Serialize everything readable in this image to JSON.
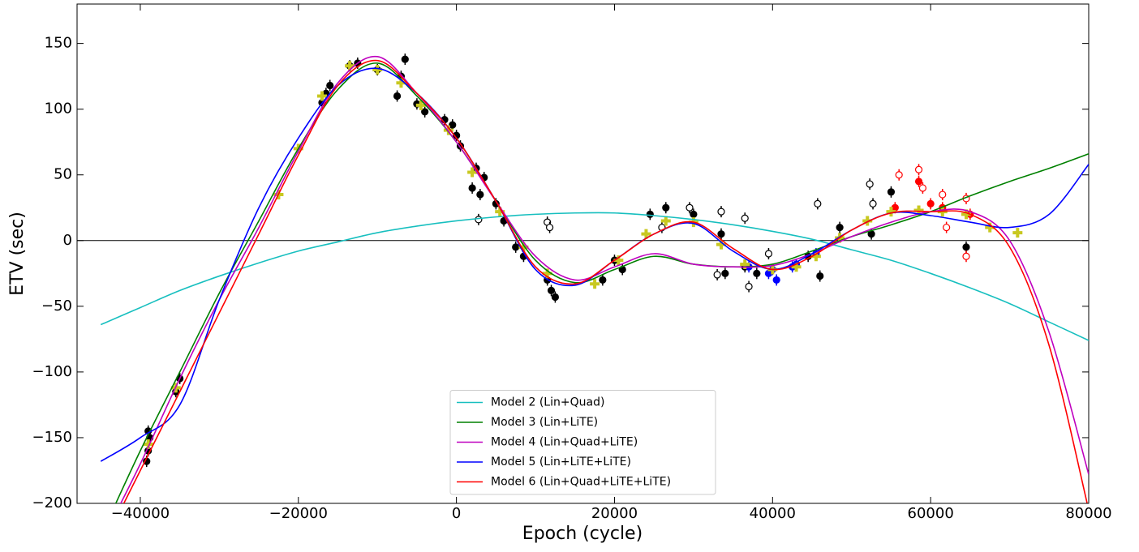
{
  "chart_data": {
    "type": "line",
    "x_label": "Epoch (cycle)",
    "y_label": "ETV (sec)",
    "xlim": [
      -48000,
      80000
    ],
    "ylim": [
      -200,
      180
    ],
    "xticks": [
      {
        "value": -40000,
        "label": "−40000"
      },
      {
        "value": -20000,
        "label": "−20000"
      },
      0,
      20000,
      40000,
      60000,
      80000
    ],
    "yticks": [
      {
        "value": -200,
        "label": "−200"
      },
      {
        "value": -150,
        "label": "−150"
      },
      {
        "value": -100,
        "label": "−100"
      },
      {
        "value": -50,
        "label": "−50"
      },
      0,
      50,
      100,
      150
    ],
    "hline": 0,
    "legend": "lower center",
    "x": [
      -45000,
      -40000,
      -35000,
      -30000,
      -25000,
      -20000,
      -15000,
      -10000,
      -5000,
      0,
      5000,
      10000,
      15000,
      20000,
      25000,
      30000,
      35000,
      40000,
      45000,
      50000,
      55000,
      60000,
      65000,
      70000,
      75000,
      80000
    ],
    "series": [
      {
        "name": "Model 2 (Lin+Quad)",
        "color": "#17bfbf",
        "values": [
          -64,
          -51,
          -38,
          -27,
          -17,
          -8,
          -1,
          6,
          11,
          15,
          18,
          20,
          21,
          21,
          19,
          16,
          12,
          7,
          1,
          -7,
          -15,
          -25,
          -36,
          -48,
          -62,
          -76
        ]
      },
      {
        "name": "Model 3 (Lin+LiTE)",
        "color": "#008000",
        "values": [
          -225,
          -160,
          -100,
          -40,
          15,
          70,
          115,
          135,
          110,
          75,
          30,
          -15,
          -32,
          -22,
          -12,
          -18,
          -20,
          -18,
          -8,
          3,
          12,
          22,
          34,
          45,
          55,
          66
        ]
      },
      {
        "name": "Model 4 (Lin+Quad+LiTE)",
        "color": "#bf00bf",
        "values": [
          -230,
          -170,
          -105,
          -45,
          10,
          68,
          120,
          140,
          112,
          75,
          30,
          -12,
          -30,
          -20,
          -10,
          -18,
          -20,
          -19,
          -10,
          3,
          14,
          22,
          22,
          0,
          -70,
          -178
        ]
      },
      {
        "name": "Model 5 (Lin+LiTE+LiTE)",
        "color": "#0000ff",
        "values": [
          -168,
          -150,
          -125,
          -45,
          25,
          78,
          118,
          131,
          112,
          78,
          30,
          -22,
          -34,
          -15,
          5,
          13,
          -8,
          -22,
          -10,
          8,
          21,
          19,
          14,
          10,
          20,
          58
        ]
      },
      {
        "name": "Model 6 (Lin+Quad+LiTE+LiTE)",
        "color": "#ff0000",
        "values": [
          -235,
          -175,
          -115,
          -55,
          5,
          65,
          118,
          137,
          112,
          78,
          30,
          -20,
          -33,
          -15,
          5,
          14,
          -6,
          -22,
          -12,
          8,
          21,
          22,
          20,
          -5,
          -80,
          -205
        ]
      }
    ],
    "point_sets": [
      {
        "marker": "filled",
        "color": "#000000",
        "x": [
          -39000,
          -39000,
          -39200,
          -38800,
          -35500,
          -35000,
          -17000,
          -16500,
          -16000,
          -13500,
          -12500,
          -10000,
          -7500,
          -7000,
          -6500,
          -5000,
          -4000,
          -1500,
          -500,
          0,
          500,
          2000,
          2500,
          3000,
          3500,
          5000,
          6000,
          7500,
          8500,
          11500,
          12000,
          12500,
          18500,
          20000,
          21000,
          24500,
          26500,
          30000,
          33500,
          34000,
          36500,
          38000,
          44500,
          46000,
          48500,
          52500,
          55000,
          64500
        ],
        "y": [
          -145,
          -160,
          -168,
          -150,
          -115,
          -105,
          105,
          112,
          118,
          133,
          135,
          130,
          110,
          125,
          138,
          104,
          98,
          92,
          88,
          80,
          72,
          40,
          55,
          35,
          48,
          28,
          15,
          -5,
          -12,
          -30,
          -38,
          -43,
          -30,
          -15,
          -22,
          20,
          25,
          20,
          5,
          -25,
          -20,
          -25,
          -12,
          -27,
          10,
          5,
          37,
          -5
        ]
      },
      {
        "marker": "open",
        "color": "#000000",
        "x": [
          2800,
          11500,
          11800,
          26000,
          29500,
          33000,
          33500,
          36500,
          37000,
          39500,
          45700,
          52300,
          52700
        ],
        "y": [
          16,
          14,
          10,
          10,
          25,
          -26,
          22,
          17,
          -35,
          -10,
          28,
          43,
          28
        ]
      },
      {
        "marker": "open",
        "color": "#ff0000",
        "x": [
          56000,
          58500,
          59000,
          61500,
          62000,
          64500,
          64500
        ],
        "y": [
          50,
          54,
          40,
          35,
          10,
          32,
          -12
        ]
      },
      {
        "marker": "filled",
        "color": "#ff0000",
        "x": [
          58500,
          61500,
          65000,
          55500,
          60000
        ],
        "y": [
          45,
          25,
          20,
          25,
          28
        ]
      },
      {
        "marker": "filled",
        "color": "#0000ff",
        "x": [
          37000,
          39500,
          40000,
          42500,
          43000,
          45500,
          40500
        ],
        "y": [
          -20,
          -25,
          -22,
          -20,
          -18,
          -10,
          -30
        ]
      },
      {
        "marker": "plus",
        "color": "#c8c820",
        "x": [
          -39000,
          -35500,
          -22500,
          -20000,
          -17000,
          -13500,
          -10000,
          -7000,
          -4500,
          -1000,
          2000,
          5500,
          8500,
          11500,
          17500,
          20500,
          24000,
          26500,
          30000,
          33500,
          36500,
          40000,
          43000,
          45500,
          48500,
          52000,
          55000,
          58500,
          61500,
          64500,
          67500,
          71000
        ],
        "y": [
          -155,
          -112,
          35,
          70,
          110,
          133,
          130,
          120,
          103,
          84,
          52,
          22,
          -5,
          -25,
          -33,
          -15,
          5,
          15,
          14,
          -3,
          -18,
          -22,
          -20,
          -12,
          2,
          15,
          22,
          23,
          22,
          20,
          10,
          6
        ]
      }
    ]
  }
}
